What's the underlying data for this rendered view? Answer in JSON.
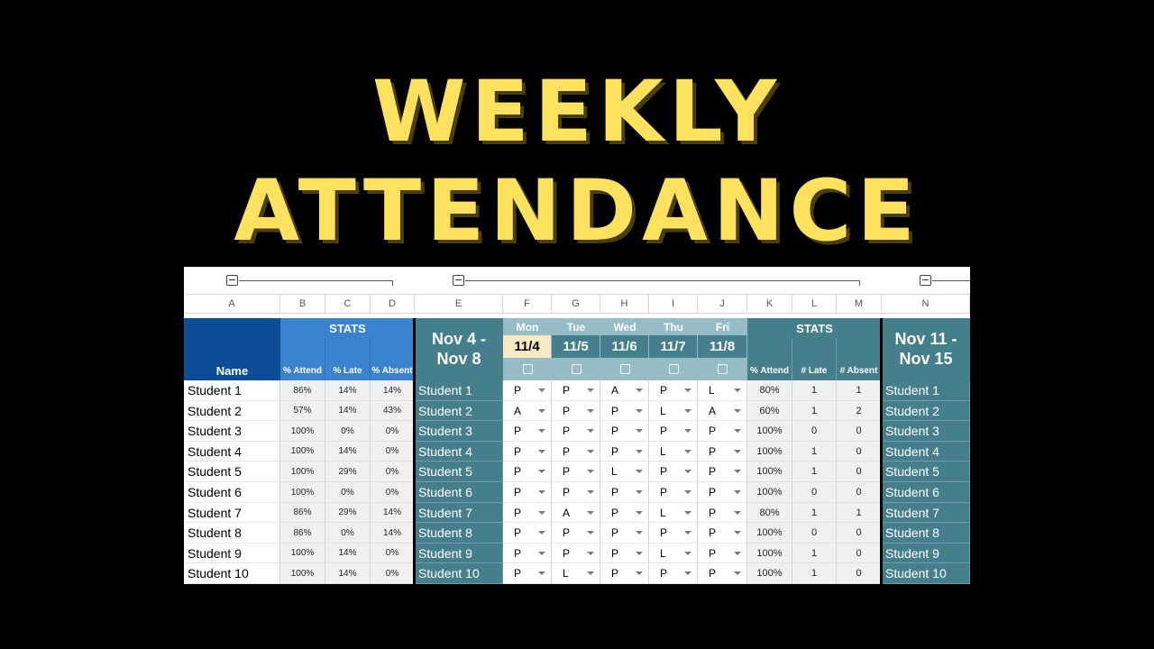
{
  "title": {
    "line1": "WEEKLY",
    "line2": "ATTENDANCE"
  },
  "columns": [
    "A",
    "B",
    "C",
    "D",
    "E",
    "F",
    "G",
    "H",
    "I",
    "J",
    "K",
    "L",
    "M",
    "N"
  ],
  "header": {
    "name": "Name",
    "stats": "STATS",
    "stat_cols": [
      "% Attend",
      "% Late",
      "% Absent"
    ],
    "week1": "Nov 4 - Nov 8",
    "days": [
      "Mon",
      "Tue",
      "Wed",
      "Thu",
      "Fri"
    ],
    "dates": [
      "11/4",
      "11/5",
      "11/6",
      "11/7",
      "11/8"
    ],
    "week_stats": "STATS",
    "week_stat_cols": [
      "% Attend",
      "# Late",
      "# Absent"
    ],
    "week2": "Nov 11 - Nov 15"
  },
  "rows": [
    {
      "name": "Student 1",
      "attend": "86%",
      "late": "14%",
      "absent": "14%",
      "marks": [
        "P",
        "P",
        "A",
        "P",
        "L"
      ],
      "w_attend": "80%",
      "w_late": "1",
      "w_absent": "1"
    },
    {
      "name": "Student 2",
      "attend": "57%",
      "late": "14%",
      "absent": "43%",
      "marks": [
        "A",
        "P",
        "P",
        "L",
        "A"
      ],
      "w_attend": "60%",
      "w_late": "1",
      "w_absent": "2"
    },
    {
      "name": "Student 3",
      "attend": "100%",
      "late": "0%",
      "absent": "0%",
      "marks": [
        "P",
        "P",
        "P",
        "P",
        "P"
      ],
      "w_attend": "100%",
      "w_late": "0",
      "w_absent": "0"
    },
    {
      "name": "Student 4",
      "attend": "100%",
      "late": "14%",
      "absent": "0%",
      "marks": [
        "P",
        "P",
        "P",
        "L",
        "P"
      ],
      "w_attend": "100%",
      "w_late": "1",
      "w_absent": "0"
    },
    {
      "name": "Student 5",
      "attend": "100%",
      "late": "29%",
      "absent": "0%",
      "marks": [
        "P",
        "P",
        "L",
        "P",
        "P"
      ],
      "w_attend": "100%",
      "w_late": "1",
      "w_absent": "0"
    },
    {
      "name": "Student 6",
      "attend": "100%",
      "late": "0%",
      "absent": "0%",
      "marks": [
        "P",
        "P",
        "P",
        "P",
        "P"
      ],
      "w_attend": "100%",
      "w_late": "0",
      "w_absent": "0"
    },
    {
      "name": "Student 7",
      "attend": "86%",
      "late": "29%",
      "absent": "14%",
      "marks": [
        "P",
        "A",
        "P",
        "L",
        "P"
      ],
      "w_attend": "80%",
      "w_late": "1",
      "w_absent": "1"
    },
    {
      "name": "Student 8",
      "attend": "86%",
      "late": "0%",
      "absent": "14%",
      "marks": [
        "P",
        "P",
        "P",
        "P",
        "P"
      ],
      "w_attend": "100%",
      "w_late": "0",
      "w_absent": "0"
    },
    {
      "name": "Student 9",
      "attend": "100%",
      "late": "14%",
      "absent": "0%",
      "marks": [
        "P",
        "P",
        "P",
        "L",
        "P"
      ],
      "w_attend": "100%",
      "w_late": "1",
      "w_absent": "0"
    },
    {
      "name": "Student 10",
      "attend": "100%",
      "late": "14%",
      "absent": "0%",
      "marks": [
        "P",
        "L",
        "P",
        "P",
        "P"
      ],
      "w_attend": "100%",
      "w_late": "1",
      "w_absent": "0"
    }
  ],
  "colors": {
    "title": "#fde15f",
    "header_dark": "#0c4e96",
    "header_blue": "#3b83cf",
    "teal": "#457f8b",
    "teal_light": "#96bcc6",
    "date_highlight": "#f9e9c2"
  }
}
